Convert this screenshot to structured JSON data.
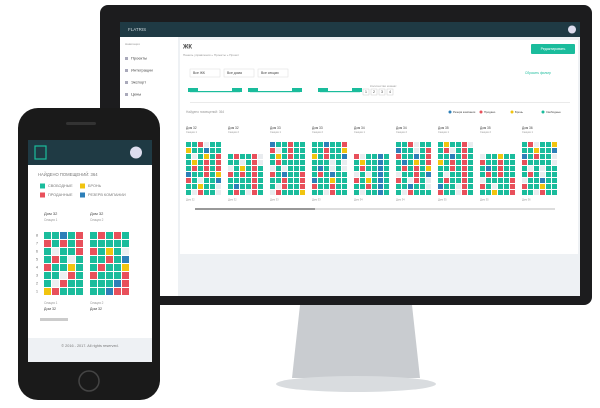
{
  "desktop": {
    "brand": "FLATRIS",
    "sidebar": {
      "heading": "Навигация",
      "items": [
        "Проекты",
        "Интеграции",
        "Экспорт",
        "Цены"
      ]
    },
    "title": "ЖК",
    "breadcrumb": "Панель управления » Проекты » Проект",
    "edit_button": "Редактировать",
    "filters": [
      "Все ЖК",
      "Все дома",
      "Все секции"
    ],
    "reset_filter": "Сбросить фильтр",
    "rooms_label": "Количество комнат",
    "rooms": [
      "1",
      "2",
      "3",
      "4"
    ],
    "found": "Найдено помещений: 364",
    "legend": [
      {
        "label": "Резерв компании",
        "color": "#2d7fb8"
      },
      {
        "label": "Продано",
        "color": "#e8505b"
      },
      {
        "label": "Бронь",
        "color": "#f1c40f"
      },
      {
        "label": "Свободные",
        "color": "#1abc9c"
      }
    ],
    "houses": [
      {
        "house": "Дом 32",
        "section": "Секция 1"
      },
      {
        "house": "Дом 32",
        "section": "Секция 2"
      },
      {
        "house": "Дом 33",
        "section": "Секция 1"
      },
      {
        "house": "Дом 33",
        "section": "Секция 2"
      },
      {
        "house": "Дом 34",
        "section": "Секция 1"
      },
      {
        "house": "Дом 34",
        "section": "Секция 2"
      },
      {
        "house": "Дом 35",
        "section": "Секция 1"
      },
      {
        "house": "Дом 35",
        "section": "Секция 2"
      },
      {
        "house": "Дом 36",
        "section": "Секция 1"
      }
    ]
  },
  "mobile": {
    "found": "НАЙДЕНО ПОМЕЩЕНИЙ: 364",
    "legend": [
      {
        "label": "СВОБОДНЫЕ",
        "color": "#1abc9c"
      },
      {
        "label": "БРОНЬ",
        "color": "#f1c40f"
      },
      {
        "label": "ПРОДАННЫЕ",
        "color": "#e8505b"
      },
      {
        "label": "РЕЗЕРВ КОМПАНИИ",
        "color": "#2d7fb8"
      }
    ],
    "houses": [
      {
        "house": "Дом 32",
        "section": "Секция 1"
      },
      {
        "house": "Дом 32",
        "section": "Секция 2"
      }
    ],
    "floors": [
      "8",
      "7",
      "6",
      "5",
      "4",
      "3",
      "2",
      "1"
    ],
    "footer": "© 2016 - 2017. All rights reserved."
  }
}
